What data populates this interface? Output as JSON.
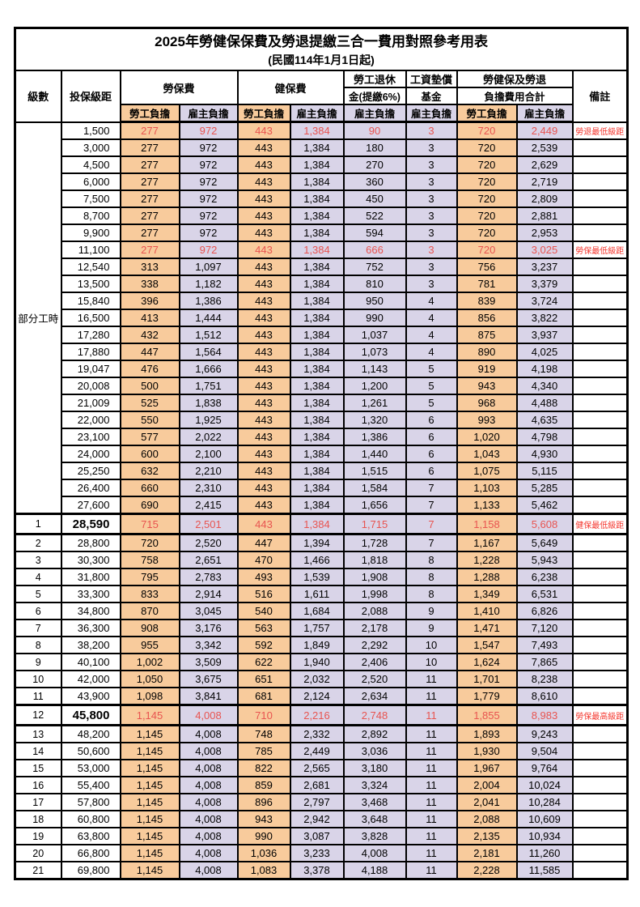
{
  "title": "2025年勞健保保費及勞退提繳三合一費用對照參考用表",
  "subtitle": "(民國114年1月1日起)",
  "colors": {
    "worker_bg": "#f8cb9c",
    "employer_bg": "#d9d4e8",
    "highlight_number_red": "#e85450",
    "remark_red": "#f4362d",
    "border": "#000000"
  },
  "header": {
    "level": "級數",
    "bracket": "投保級距",
    "labor": "勞保費",
    "health": "健保費",
    "pension_line1": "勞工退休",
    "pension_line2": "金(提繳6%)",
    "wage_line1": "工資墊償",
    "wage_line2": "基金",
    "total_line1": "勞健保及勞退",
    "total_line2": "負擔費用合計",
    "remark": "備註",
    "worker": "勞工負擔",
    "employer": "雇主負擔"
  },
  "part_time_label": "部分工時",
  "rows": [
    {
      "level": "",
      "bracket": "1,500",
      "cells": [
        "277",
        "972",
        "443",
        "1,384",
        "90",
        "3",
        "720",
        "2,449"
      ],
      "remark": "勞退最低級距",
      "red": true,
      "special": false
    },
    {
      "level": "",
      "bracket": "3,000",
      "cells": [
        "277",
        "972",
        "443",
        "1,384",
        "180",
        "3",
        "720",
        "2,539"
      ],
      "remark": "",
      "red": false,
      "special": false
    },
    {
      "level": "",
      "bracket": "4,500",
      "cells": [
        "277",
        "972",
        "443",
        "1,384",
        "270",
        "3",
        "720",
        "2,629"
      ],
      "remark": "",
      "red": false,
      "special": false
    },
    {
      "level": "",
      "bracket": "6,000",
      "cells": [
        "277",
        "972",
        "443",
        "1,384",
        "360",
        "3",
        "720",
        "2,719"
      ],
      "remark": "",
      "red": false,
      "special": false
    },
    {
      "level": "",
      "bracket": "7,500",
      "cells": [
        "277",
        "972",
        "443",
        "1,384",
        "450",
        "3",
        "720",
        "2,809"
      ],
      "remark": "",
      "red": false,
      "special": false
    },
    {
      "level": "",
      "bracket": "8,700",
      "cells": [
        "277",
        "972",
        "443",
        "1,384",
        "522",
        "3",
        "720",
        "2,881"
      ],
      "remark": "",
      "red": false,
      "special": false
    },
    {
      "level": "",
      "bracket": "9,900",
      "cells": [
        "277",
        "972",
        "443",
        "1,384",
        "594",
        "3",
        "720",
        "2,953"
      ],
      "remark": "",
      "red": false,
      "special": false
    },
    {
      "level": "",
      "bracket": "11,100",
      "cells": [
        "277",
        "972",
        "443",
        "1,384",
        "666",
        "3",
        "720",
        "3,025"
      ],
      "remark": "勞保最低級距",
      "red": true,
      "special": false
    },
    {
      "level": "",
      "bracket": "12,540",
      "cells": [
        "313",
        "1,097",
        "443",
        "1,384",
        "752",
        "3",
        "756",
        "3,237"
      ],
      "remark": "",
      "red": false,
      "special": false
    },
    {
      "level": "",
      "bracket": "13,500",
      "cells": [
        "338",
        "1,182",
        "443",
        "1,384",
        "810",
        "3",
        "781",
        "3,379"
      ],
      "remark": "",
      "red": false,
      "special": false
    },
    {
      "level": "",
      "bracket": "15,840",
      "cells": [
        "396",
        "1,386",
        "443",
        "1,384",
        "950",
        "4",
        "839",
        "3,724"
      ],
      "remark": "",
      "red": false,
      "special": false
    },
    {
      "level": "",
      "bracket": "16,500",
      "cells": [
        "413",
        "1,444",
        "443",
        "1,384",
        "990",
        "4",
        "856",
        "3,822"
      ],
      "remark": "",
      "red": false,
      "special": false
    },
    {
      "level": "",
      "bracket": "17,280",
      "cells": [
        "432",
        "1,512",
        "443",
        "1,384",
        "1,037",
        "4",
        "875",
        "3,937"
      ],
      "remark": "",
      "red": false,
      "special": false
    },
    {
      "level": "",
      "bracket": "17,880",
      "cells": [
        "447",
        "1,564",
        "443",
        "1,384",
        "1,073",
        "4",
        "890",
        "4,025"
      ],
      "remark": "",
      "red": false,
      "special": false
    },
    {
      "level": "",
      "bracket": "19,047",
      "cells": [
        "476",
        "1,666",
        "443",
        "1,384",
        "1,143",
        "5",
        "919",
        "4,198"
      ],
      "remark": "",
      "red": false,
      "special": false
    },
    {
      "level": "",
      "bracket": "20,008",
      "cells": [
        "500",
        "1,751",
        "443",
        "1,384",
        "1,200",
        "5",
        "943",
        "4,340"
      ],
      "remark": "",
      "red": false,
      "special": false
    },
    {
      "level": "",
      "bracket": "21,009",
      "cells": [
        "525",
        "1,838",
        "443",
        "1,384",
        "1,261",
        "5",
        "968",
        "4,488"
      ],
      "remark": "",
      "red": false,
      "special": false
    },
    {
      "level": "",
      "bracket": "22,000",
      "cells": [
        "550",
        "1,925",
        "443",
        "1,384",
        "1,320",
        "6",
        "993",
        "4,635"
      ],
      "remark": "",
      "red": false,
      "special": false
    },
    {
      "level": "",
      "bracket": "23,100",
      "cells": [
        "577",
        "2,022",
        "443",
        "1,384",
        "1,386",
        "6",
        "1,020",
        "4,798"
      ],
      "remark": "",
      "red": false,
      "special": false
    },
    {
      "level": "",
      "bracket": "24,000",
      "cells": [
        "600",
        "2,100",
        "443",
        "1,384",
        "1,440",
        "6",
        "1,043",
        "4,930"
      ],
      "remark": "",
      "red": false,
      "special": false
    },
    {
      "level": "",
      "bracket": "25,250",
      "cells": [
        "632",
        "2,210",
        "443",
        "1,384",
        "1,515",
        "6",
        "1,075",
        "5,115"
      ],
      "remark": "",
      "red": false,
      "special": false
    },
    {
      "level": "",
      "bracket": "26,400",
      "cells": [
        "660",
        "2,310",
        "443",
        "1,384",
        "1,584",
        "7",
        "1,103",
        "5,285"
      ],
      "remark": "",
      "red": false,
      "special": false
    },
    {
      "level": "",
      "bracket": "27,600",
      "cells": [
        "690",
        "2,415",
        "443",
        "1,384",
        "1,656",
        "7",
        "1,133",
        "5,462"
      ],
      "remark": "",
      "red": false,
      "special": false
    },
    {
      "level": "1",
      "bracket": "28,590",
      "cells": [
        "715",
        "2,501",
        "443",
        "1,384",
        "1,715",
        "7",
        "1,158",
        "5,608"
      ],
      "remark": "健保最低級距",
      "red": true,
      "special": true
    },
    {
      "level": "2",
      "bracket": "28,800",
      "cells": [
        "720",
        "2,520",
        "447",
        "1,394",
        "1,728",
        "7",
        "1,167",
        "5,649"
      ],
      "remark": "",
      "red": false,
      "special": false
    },
    {
      "level": "3",
      "bracket": "30,300",
      "cells": [
        "758",
        "2,651",
        "470",
        "1,466",
        "1,818",
        "8",
        "1,228",
        "5,943"
      ],
      "remark": "",
      "red": false,
      "special": false
    },
    {
      "level": "4",
      "bracket": "31,800",
      "cells": [
        "795",
        "2,783",
        "493",
        "1,539",
        "1,908",
        "8",
        "1,288",
        "6,238"
      ],
      "remark": "",
      "red": false,
      "special": false
    },
    {
      "level": "5",
      "bracket": "33,300",
      "cells": [
        "833",
        "2,914",
        "516",
        "1,611",
        "1,998",
        "8",
        "1,349",
        "6,531"
      ],
      "remark": "",
      "red": false,
      "special": false
    },
    {
      "level": "6",
      "bracket": "34,800",
      "cells": [
        "870",
        "3,045",
        "540",
        "1,684",
        "2,088",
        "9",
        "1,410",
        "6,826"
      ],
      "remark": "",
      "red": false,
      "special": false
    },
    {
      "level": "7",
      "bracket": "36,300",
      "cells": [
        "908",
        "3,176",
        "563",
        "1,757",
        "2,178",
        "9",
        "1,471",
        "7,120"
      ],
      "remark": "",
      "red": false,
      "special": false
    },
    {
      "level": "8",
      "bracket": "38,200",
      "cells": [
        "955",
        "3,342",
        "592",
        "1,849",
        "2,292",
        "10",
        "1,547",
        "7,493"
      ],
      "remark": "",
      "red": false,
      "special": false
    },
    {
      "level": "9",
      "bracket": "40,100",
      "cells": [
        "1,002",
        "3,509",
        "622",
        "1,940",
        "2,406",
        "10",
        "1,624",
        "7,865"
      ],
      "remark": "",
      "red": false,
      "special": false
    },
    {
      "level": "10",
      "bracket": "42,000",
      "cells": [
        "1,050",
        "3,675",
        "651",
        "2,032",
        "2,520",
        "11",
        "1,701",
        "8,238"
      ],
      "remark": "",
      "red": false,
      "special": false
    },
    {
      "level": "11",
      "bracket": "43,900",
      "cells": [
        "1,098",
        "3,841",
        "681",
        "2,124",
        "2,634",
        "11",
        "1,779",
        "8,610"
      ],
      "remark": "",
      "red": false,
      "special": false
    },
    {
      "level": "12",
      "bracket": "45,800",
      "cells": [
        "1,145",
        "4,008",
        "710",
        "2,216",
        "2,748",
        "11",
        "1,855",
        "8,983"
      ],
      "remark": "勞保最高級距",
      "red": true,
      "special": true
    },
    {
      "level": "13",
      "bracket": "48,200",
      "cells": [
        "1,145",
        "4,008",
        "748",
        "2,332",
        "2,892",
        "11",
        "1,893",
        "9,243"
      ],
      "remark": "",
      "red": false,
      "special": false
    },
    {
      "level": "14",
      "bracket": "50,600",
      "cells": [
        "1,145",
        "4,008",
        "785",
        "2,449",
        "3,036",
        "11",
        "1,930",
        "9,504"
      ],
      "remark": "",
      "red": false,
      "special": false
    },
    {
      "level": "15",
      "bracket": "53,000",
      "cells": [
        "1,145",
        "4,008",
        "822",
        "2,565",
        "3,180",
        "11",
        "1,967",
        "9,764"
      ],
      "remark": "",
      "red": false,
      "special": false
    },
    {
      "level": "16",
      "bracket": "55,400",
      "cells": [
        "1,145",
        "4,008",
        "859",
        "2,681",
        "3,324",
        "11",
        "2,004",
        "10,024"
      ],
      "remark": "",
      "red": false,
      "special": false
    },
    {
      "level": "17",
      "bracket": "57,800",
      "cells": [
        "1,145",
        "4,008",
        "896",
        "2,797",
        "3,468",
        "11",
        "2,041",
        "10,284"
      ],
      "remark": "",
      "red": false,
      "special": false
    },
    {
      "level": "18",
      "bracket": "60,800",
      "cells": [
        "1,145",
        "4,008",
        "943",
        "2,942",
        "3,648",
        "11",
        "2,088",
        "10,609"
      ],
      "remark": "",
      "red": false,
      "special": false
    },
    {
      "level": "19",
      "bracket": "63,800",
      "cells": [
        "1,145",
        "4,008",
        "990",
        "3,087",
        "3,828",
        "11",
        "2,135",
        "10,934"
      ],
      "remark": "",
      "red": false,
      "special": false
    },
    {
      "level": "20",
      "bracket": "66,800",
      "cells": [
        "1,145",
        "4,008",
        "1,036",
        "3,233",
        "4,008",
        "11",
        "2,181",
        "11,260"
      ],
      "remark": "",
      "red": false,
      "special": false
    },
    {
      "level": "21",
      "bracket": "69,800",
      "cells": [
        "1,145",
        "4,008",
        "1,083",
        "3,378",
        "4,188",
        "11",
        "2,228",
        "11,585"
      ],
      "remark": "",
      "red": false,
      "special": false
    }
  ]
}
